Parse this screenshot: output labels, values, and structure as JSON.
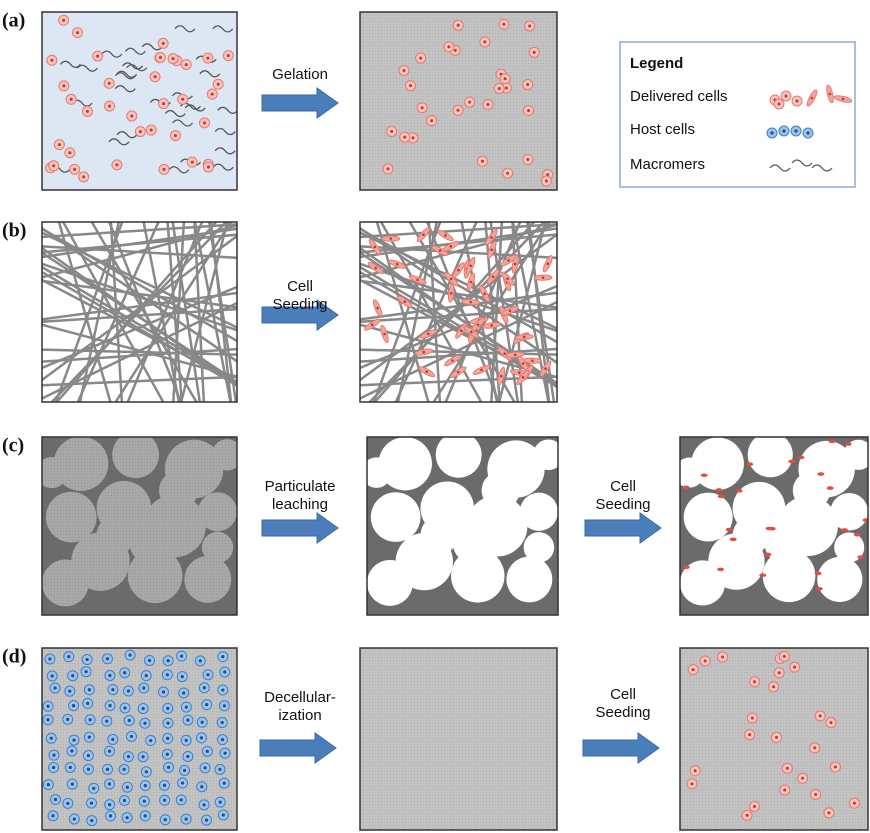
{
  "panels": [
    {
      "label": "(a)",
      "steps": [
        [
          "Gelation"
        ]
      ]
    },
    {
      "label": "(b)",
      "steps": [
        [
          "Cell",
          "Seeding"
        ]
      ]
    },
    {
      "label": "(c)",
      "steps": [
        [
          "Particulate",
          "leaching"
        ],
        [
          "Cell",
          "Seeding"
        ]
      ]
    },
    {
      "label": "(d)",
      "steps": [
        [
          "Decellular-",
          "ization"
        ],
        [
          "Cell",
          "Seeding"
        ]
      ]
    }
  ],
  "legend": {
    "title": "Legend",
    "items": [
      "Delivered cells",
      "Host cells",
      "Macromers"
    ]
  }
}
